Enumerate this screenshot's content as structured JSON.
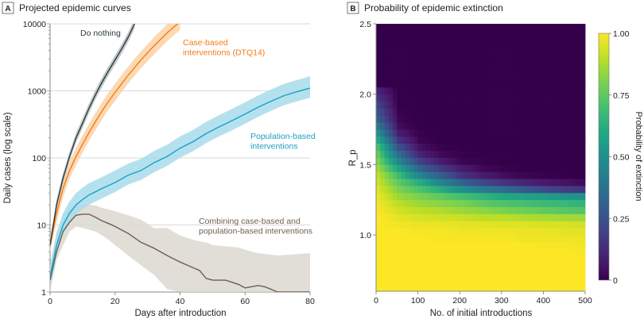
{
  "chart_data": [
    {
      "panel_label": "A",
      "title": "Projected epidemic curves",
      "type": "line",
      "xlabel": "Days after introduction",
      "ylabel": "Daily cases (log scale)",
      "xlim": [
        0,
        80
      ],
      "ylim": [
        1,
        10000
      ],
      "y_scale": "log",
      "x_ticks": [
        "0",
        "20",
        "40",
        "60",
        "80"
      ],
      "y_ticks": [
        "1",
        "10",
        "100",
        "1000",
        "10000"
      ],
      "grid": "horizontal",
      "series": [
        {
          "name": "Do nothing",
          "color": "#2b3b40",
          "band_color": "#b8bfc1",
          "x": [
            0,
            2,
            4,
            6,
            8,
            10,
            12,
            14,
            16,
            18,
            20,
            22,
            24,
            26
          ],
          "y": [
            5,
            20,
            50,
            105,
            200,
            330,
            550,
            880,
            1350,
            2000,
            2900,
            4200,
            6300,
            10000
          ],
          "lower": [
            4,
            17,
            42,
            90,
            170,
            280,
            470,
            750,
            1150,
            1700,
            2450,
            3550,
            5350,
            8500
          ],
          "upper": [
            6,
            24,
            59,
            124,
            236,
            390,
            650,
            1040,
            1600,
            2350,
            3400,
            4950,
            7400,
            11800
          ]
        },
        {
          "name": "Case-based interventions (DTQ14)",
          "label_lines": [
            "Case-based",
            "interventions (DTQ14)"
          ],
          "color": "#f47b16",
          "band_color": "#fcd2a6",
          "x": [
            0,
            2,
            4,
            6,
            8,
            10,
            12,
            14,
            16,
            18,
            20,
            24,
            28,
            32,
            36,
            40
          ],
          "y": [
            5,
            15,
            35,
            65,
            105,
            160,
            240,
            350,
            500,
            700,
            950,
            1700,
            2900,
            4700,
            7300,
            10800
          ],
          "lower": [
            4,
            11,
            26,
            49,
            79,
            120,
            180,
            260,
            375,
            525,
            710,
            1280,
            2180,
            3500,
            5500,
            8100
          ],
          "upper": [
            7,
            20,
            47,
            88,
            142,
            216,
            324,
            470,
            675,
            945,
            1280,
            2300,
            3900,
            6350,
            9850,
            14600
          ]
        },
        {
          "name": "Population-based interventions",
          "label_lines": [
            "Population-based",
            "interventions"
          ],
          "color": "#1a9fc7",
          "band_color": "#a8dcec",
          "x": [
            0,
            2,
            4,
            6,
            8,
            10,
            12,
            16,
            20,
            24,
            28,
            32,
            36,
            40,
            44,
            48,
            52,
            56,
            60,
            64,
            68,
            72,
            76,
            80
          ],
          "y": [
            1.7,
            5,
            10,
            15,
            20,
            24,
            28,
            35,
            43,
            55,
            65,
            85,
            105,
            140,
            175,
            230,
            290,
            360,
            450,
            570,
            700,
            850,
            970,
            1100
          ],
          "lower": [
            1.2,
            3.6,
            7.2,
            10.8,
            14.4,
            17.3,
            20,
            25,
            31,
            40,
            47,
            61,
            76,
            101,
            126,
            166,
            209,
            259,
            324,
            410,
            504,
            612,
            698,
            790
          ],
          "upper": [
            2.5,
            7.5,
            15,
            22.5,
            30,
            36,
            42,
            52,
            65,
            82,
            97,
            127,
            157,
            210,
            262,
            345,
            435,
            540,
            675,
            855,
            1050,
            1275,
            1455,
            1650
          ]
        },
        {
          "name": "Combining case-based and population-based interventions",
          "label_lines": [
            "Combining case-based and",
            "population-based interventions"
          ],
          "color": "#6c5f50",
          "band_color": "#dcd8d0",
          "x": [
            0,
            2,
            4,
            6,
            8,
            10,
            12,
            14,
            16,
            18,
            20,
            24,
            28,
            32,
            36,
            40,
            44,
            46,
            48,
            50,
            54,
            58,
            60,
            62,
            64,
            66,
            68,
            70,
            80
          ],
          "y": [
            1.5,
            4,
            8,
            11,
            14,
            14.5,
            14.5,
            13,
            11.5,
            10.5,
            9.5,
            7.5,
            5.5,
            4.5,
            3.5,
            2.8,
            2.3,
            2.1,
            1.6,
            1.5,
            1.5,
            1.3,
            1.15,
            1.2,
            1.25,
            1.2,
            1.1,
            1,
            1
          ],
          "lower": [
            1,
            3,
            5,
            8,
            9.5,
            9,
            8.5,
            8,
            7,
            6,
            5,
            3.5,
            2.5,
            1.8,
            1.1,
            1,
            1,
            1,
            1,
            1,
            1,
            1,
            1,
            1,
            1,
            1,
            1,
            1,
            1
          ],
          "upper": [
            2.5,
            8,
            14,
            18,
            20,
            20,
            20,
            19.5,
            18,
            17,
            16,
            14,
            12,
            9,
            9,
            7,
            6,
            5.7,
            5.5,
            5,
            4.8,
            4.6,
            4.3,
            4,
            3.8,
            3.7,
            3.6,
            3.5,
            3.8
          ]
        }
      ]
    },
    {
      "panel_label": "B",
      "title": "Probability of epidemic extinction",
      "type": "heatmap",
      "xlabel": "No. of initial introductions",
      "ylabel": "R_p",
      "xlim": [
        0,
        500
      ],
      "ylim": [
        0.6,
        2.5
      ],
      "x_ticks": [
        "0",
        "100",
        "200",
        "300",
        "400",
        "500"
      ],
      "y_ticks": [
        "1.0",
        "1.5",
        "2.0",
        "2.5"
      ],
      "colorbar": {
        "label": "Probability of extinction",
        "ticks": [
          "0",
          "0.25",
          "0.50",
          "0.75",
          "1.00"
        ],
        "range": [
          0,
          1
        ],
        "colormap": "viridis"
      },
      "n_values": [
        0,
        50,
        100,
        150,
        200,
        250,
        300,
        350,
        400,
        450,
        500
      ],
      "r_values": [
        0.6,
        0.65,
        0.7,
        0.75,
        0.8,
        0.85,
        0.9,
        0.95,
        1.0,
        1.05,
        1.1,
        1.15,
        1.2,
        1.25,
        1.3,
        1.35,
        1.4,
        1.45,
        1.5,
        1.55,
        1.6,
        1.65,
        1.7,
        1.75,
        1.8,
        1.85,
        1.9,
        1.95,
        2.0,
        2.05,
        2.1,
        2.15,
        2.2,
        2.25,
        2.3,
        2.35,
        2.4,
        2.45
      ],
      "z": [
        [
          1,
          1,
          1,
          1,
          1,
          1,
          1,
          1,
          1,
          1,
          1
        ],
        [
          1,
          1,
          1,
          1,
          1,
          1,
          1,
          1,
          1,
          1,
          1
        ],
        [
          1,
          1,
          1,
          1,
          1,
          1,
          1,
          1,
          1,
          1,
          1
        ],
        [
          1,
          1,
          1,
          1,
          1,
          1,
          1,
          1,
          1,
          1,
          1
        ],
        [
          1,
          1,
          1,
          1,
          1,
          1,
          1,
          1,
          1,
          1,
          1
        ],
        [
          1,
          1,
          1,
          1,
          1,
          1,
          1,
          1,
          1,
          1,
          0.99
        ],
        [
          1,
          1,
          1,
          1,
          1,
          1,
          1,
          1,
          0.99,
          0.99,
          0.98
        ],
        [
          1,
          1,
          1,
          0.99,
          0.99,
          0.99,
          0.99,
          0.98,
          0.98,
          0.98,
          0.97
        ],
        [
          1,
          1,
          0.99,
          0.99,
          0.98,
          0.98,
          0.98,
          0.97,
          0.97,
          0.96,
          0.96
        ],
        [
          1,
          0.98,
          0.97,
          0.97,
          0.96,
          0.96,
          0.95,
          0.95,
          0.94,
          0.94,
          0.93
        ],
        [
          1,
          0.96,
          0.94,
          0.93,
          0.92,
          0.9,
          0.9,
          0.88,
          0.87,
          0.86,
          0.85
        ],
        [
          0.99,
          0.93,
          0.9,
          0.88,
          0.85,
          0.83,
          0.8,
          0.78,
          0.76,
          0.74,
          0.72
        ],
        [
          0.98,
          0.9,
          0.85,
          0.82,
          0.8,
          0.75,
          0.72,
          0.7,
          0.68,
          0.67,
          0.65
        ],
        [
          0.97,
          0.85,
          0.8,
          0.75,
          0.7,
          0.65,
          0.6,
          0.58,
          0.55,
          0.52,
          0.5
        ],
        [
          0.95,
          0.8,
          0.72,
          0.62,
          0.5,
          0.42,
          0.35,
          0.28,
          0.22,
          0.18,
          0.15
        ],
        [
          0.92,
          0.75,
          0.62,
          0.45,
          0.32,
          0.22,
          0.15,
          0.1,
          0.07,
          0.05,
          0.03
        ],
        [
          0.9,
          0.68,
          0.45,
          0.3,
          0.15,
          0.08,
          0.04,
          0.02,
          0.01,
          0,
          0
        ],
        [
          0.85,
          0.58,
          0.32,
          0.18,
          0.08,
          0.03,
          0.01,
          0,
          0,
          0,
          0
        ],
        [
          0.8,
          0.45,
          0.2,
          0.08,
          0.02,
          0.01,
          0,
          0,
          0,
          0,
          0
        ],
        [
          0.75,
          0.35,
          0.1,
          0.03,
          0.01,
          0,
          0,
          0,
          0,
          0,
          0
        ],
        [
          0.7,
          0.25,
          0.05,
          0.01,
          0,
          0,
          0,
          0,
          0,
          0,
          0
        ],
        [
          0.6,
          0.15,
          0.02,
          0,
          0,
          0,
          0,
          0,
          0,
          0,
          0
        ],
        [
          0.5,
          0.08,
          0.01,
          0,
          0,
          0,
          0,
          0,
          0,
          0,
          0
        ],
        [
          0.4,
          0.04,
          0,
          0,
          0,
          0,
          0,
          0,
          0,
          0,
          0
        ],
        [
          0.3,
          0.02,
          0,
          0,
          0,
          0,
          0,
          0,
          0,
          0,
          0
        ],
        [
          0.25,
          0.01,
          0,
          0,
          0,
          0,
          0,
          0,
          0,
          0,
          0
        ],
        [
          0.2,
          0,
          0,
          0,
          0,
          0,
          0,
          0,
          0,
          0,
          0
        ],
        [
          0.15,
          0,
          0,
          0,
          0,
          0,
          0,
          0,
          0,
          0,
          0
        ],
        [
          0.1,
          0,
          0,
          0,
          0,
          0,
          0,
          0,
          0,
          0,
          0
        ],
        [
          0,
          0,
          0,
          0,
          0,
          0,
          0,
          0,
          0,
          0,
          0
        ],
        [
          0,
          0,
          0,
          0,
          0,
          0,
          0,
          0,
          0,
          0,
          0
        ],
        [
          0,
          0,
          0,
          0,
          0,
          0,
          0,
          0,
          0,
          0,
          0
        ],
        [
          0,
          0,
          0,
          0,
          0,
          0,
          0,
          0,
          0,
          0,
          0
        ],
        [
          0,
          0,
          0,
          0,
          0,
          0,
          0,
          0,
          0,
          0,
          0
        ],
        [
          0,
          0,
          0,
          0,
          0,
          0,
          0,
          0,
          0,
          0,
          0
        ],
        [
          0,
          0,
          0,
          0,
          0,
          0,
          0,
          0,
          0,
          0,
          0
        ],
        [
          0,
          0,
          0,
          0,
          0,
          0,
          0,
          0,
          0,
          0,
          0
        ],
        [
          0,
          0,
          0,
          0,
          0,
          0,
          0,
          0,
          0,
          0,
          0
        ]
      ]
    }
  ]
}
